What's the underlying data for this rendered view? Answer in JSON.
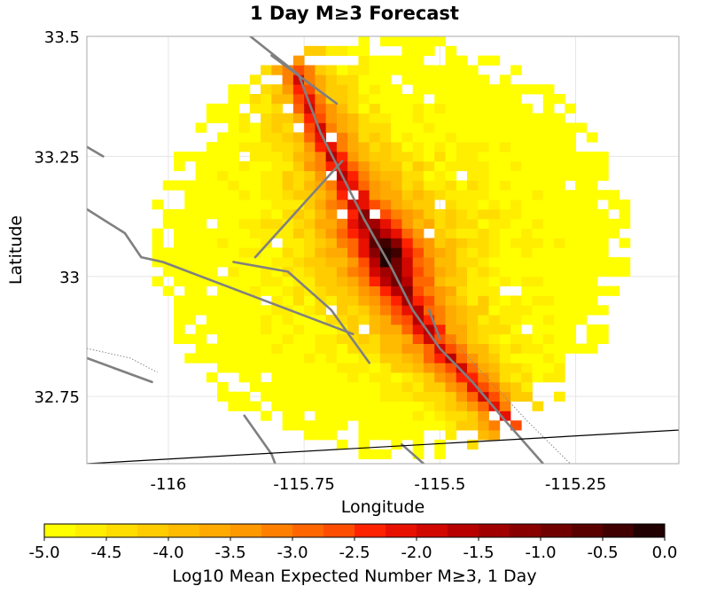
{
  "chart_data": {
    "type": "heatmap",
    "title": "1 Day M≥3 Forecast",
    "xlabel": "Longitude",
    "ylabel": "Latitude",
    "xlim": [
      -116.15,
      -115.06
    ],
    "ylim": [
      32.61,
      33.5
    ],
    "x_ticks": [
      {
        "value": -116.0,
        "label": "-116"
      },
      {
        "value": -115.75,
        "label": "-115.75"
      },
      {
        "value": -115.5,
        "label": "-115.5"
      },
      {
        "value": -115.25,
        "label": "-115.25"
      }
    ],
    "y_ticks": [
      {
        "value": 33.5,
        "label": "33.5"
      },
      {
        "value": 33.25,
        "label": "33.25"
      },
      {
        "value": 33.0,
        "label": "33"
      },
      {
        "value": 32.75,
        "label": "32.75"
      }
    ],
    "grid": true,
    "cell_size_deg": 0.02,
    "forecast_region": {
      "center": [
        -115.59,
        33.06
      ],
      "radius_deg": 0.44
    },
    "peak": {
      "lon": -115.59,
      "lat": 33.05,
      "value": -0.1
    },
    "fault_trace": [
      [
        -115.76,
        33.42
      ],
      [
        -115.72,
        33.3
      ],
      [
        -115.64,
        33.12
      ],
      [
        -115.59,
        33.02
      ],
      [
        -115.55,
        32.93
      ],
      [
        -115.5,
        32.85
      ],
      [
        -115.44,
        32.78
      ],
      [
        -115.38,
        32.7
      ],
      [
        -115.32,
        32.63
      ]
    ],
    "faults": [
      [
        [
          -115.86,
          33.51
        ],
        [
          -115.76,
          33.42
        ],
        [
          -115.72,
          33.3
        ],
        [
          -115.64,
          33.12
        ],
        [
          -115.59,
          33.02
        ],
        [
          -115.55,
          32.93
        ],
        [
          -115.5,
          32.85
        ],
        [
          -115.44,
          32.78
        ],
        [
          -115.38,
          32.7
        ],
        [
          -115.31,
          32.61
        ],
        [
          -115.28,
          32.57
        ]
      ],
      [
        [
          -115.81,
          33.46
        ],
        [
          -115.69,
          33.36
        ]
      ],
      [
        [
          -115.68,
          33.24
        ],
        [
          -115.84,
          33.04
        ]
      ],
      [
        [
          -116.15,
          33.14
        ],
        [
          -116.08,
          33.09
        ],
        [
          -116.05,
          33.04
        ],
        [
          -116.01,
          33.03
        ],
        [
          -115.8,
          32.94
        ],
        [
          -115.66,
          32.88
        ]
      ],
      [
        [
          -115.88,
          33.03
        ],
        [
          -115.78,
          33.01
        ],
        [
          -115.7,
          32.93
        ],
        [
          -115.63,
          32.82
        ]
      ],
      [
        [
          -116.15,
          32.83
        ],
        [
          -116.03,
          32.78
        ]
      ],
      [
        [
          -116.15,
          33.27
        ],
        [
          -116.12,
          33.25
        ]
      ],
      [
        [
          -115.86,
          32.71
        ],
        [
          -115.81,
          32.63
        ],
        [
          -115.79,
          32.57
        ]
      ],
      [
        [
          -115.57,
          32.65
        ],
        [
          -115.5,
          32.58
        ]
      ],
      [
        [
          -115.52,
          32.93
        ],
        [
          -115.5,
          32.87
        ]
      ]
    ],
    "boundary_line": [
      [
        -116.15,
        32.61
      ],
      [
        -115.06,
        32.68
      ]
    ],
    "dotted_lines": [
      [
        [
          -116.15,
          32.85
        ],
        [
          -116.07,
          32.83
        ],
        [
          -116.02,
          32.8
        ]
      ],
      [
        [
          -115.48,
          32.87
        ],
        [
          -115.34,
          32.7
        ],
        [
          -115.26,
          32.61
        ]
      ]
    ],
    "colorbar": {
      "label": "Log10 Mean Expected Number M≥3, 1 Day",
      "min": -5.0,
      "max": 0.0,
      "ticks": [
        {
          "value": -5.0,
          "label": "-5.0"
        },
        {
          "value": -4.5,
          "label": "-4.5"
        },
        {
          "value": -4.0,
          "label": "-4.0"
        },
        {
          "value": -3.5,
          "label": "-3.5"
        },
        {
          "value": -3.0,
          "label": "-3.0"
        },
        {
          "value": -2.5,
          "label": "-2.5"
        },
        {
          "value": -2.0,
          "label": "-2.0"
        },
        {
          "value": -1.5,
          "label": "-1.5"
        },
        {
          "value": -1.0,
          "label": "-1.0"
        },
        {
          "value": -0.5,
          "label": "-0.5"
        },
        {
          "value": 0.0,
          "label": "0.0"
        }
      ],
      "colors": [
        "#ffff00",
        "#ffee00",
        "#ffdd00",
        "#ffcc00",
        "#ffbb00",
        "#ffaa00",
        "#ff9900",
        "#ff8000",
        "#ff6600",
        "#ff4d00",
        "#ff2200",
        "#e81000",
        "#d10800",
        "#b80000",
        "#a00000",
        "#880000",
        "#700000",
        "#5a0000",
        "#400000",
        "#200000"
      ]
    }
  }
}
